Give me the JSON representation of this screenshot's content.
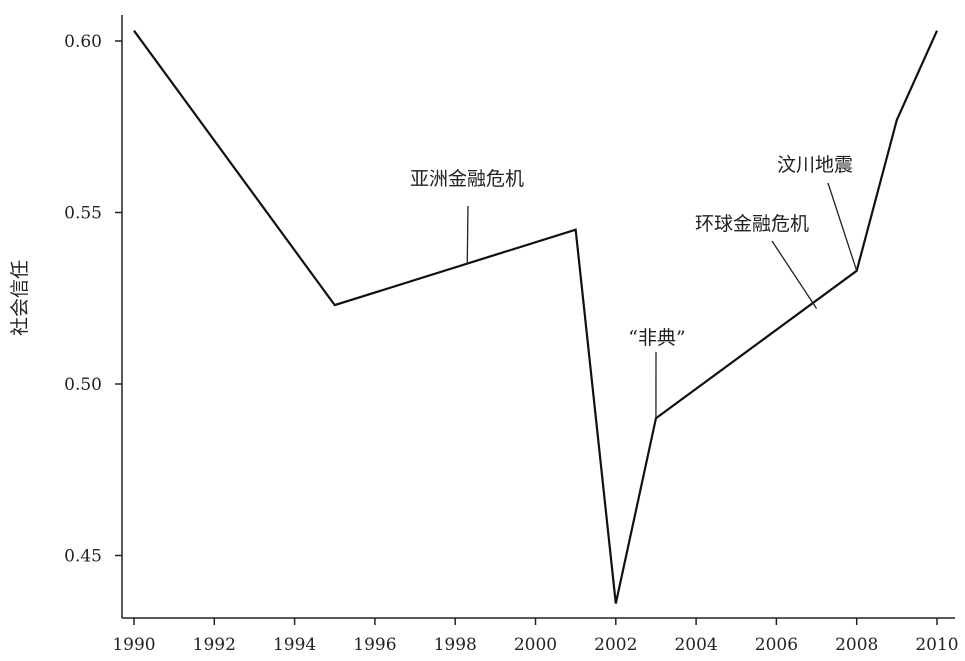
{
  "chart_data": {
    "type": "line",
    "title": "",
    "xlabel": "",
    "ylabel": "社会信任",
    "xlim": [
      1990,
      2010
    ],
    "ylim": [
      0.433,
      0.607
    ],
    "x_ticks": [
      1990,
      1992,
      1994,
      1996,
      1998,
      2000,
      2002,
      2004,
      2006,
      2008,
      2010
    ],
    "y_ticks": [
      0.45,
      0.5,
      0.55,
      0.6
    ],
    "y_tick_labels": [
      "0.45",
      "0.50",
      "0.55",
      "0.60"
    ],
    "grid": false,
    "series": [
      {
        "x": [
          1990,
          1995,
          2001,
          2002,
          2003,
          2008,
          2009,
          2010
        ],
        "y": [
          0.603,
          0.523,
          0.545,
          0.436,
          0.49,
          0.533,
          0.577,
          0.603
        ]
      }
    ],
    "annotations": [
      {
        "text": "亚洲金融危机",
        "x": 1998.3,
        "y": 0.535
      },
      {
        "text": "“非典”",
        "x": 2003,
        "y": 0.49
      },
      {
        "text": "环球金融危机",
        "x": 2007.0,
        "y": 0.522
      },
      {
        "text": "汶川地震",
        "x": 2008.0,
        "y": 0.533
      }
    ]
  }
}
